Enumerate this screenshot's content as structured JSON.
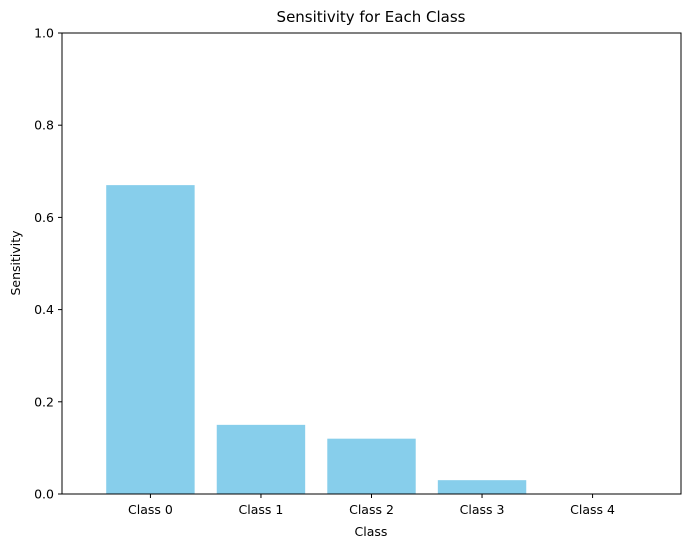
{
  "chart_data": {
    "type": "bar",
    "title": "Sensitivity for Each Class",
    "xlabel": "Class",
    "ylabel": "Sensitivity",
    "categories": [
      "Class 0",
      "Class 1",
      "Class 2",
      "Class 3",
      "Class 4"
    ],
    "values": [
      0.67,
      0.15,
      0.12,
      0.03,
      0.0
    ],
    "ylim": [
      0,
      1
    ],
    "yticks": [
      "0.0",
      "0.2",
      "0.4",
      "0.6",
      "0.8",
      "1.0"
    ],
    "bar_color": "#87ceeb",
    "grid": false,
    "legend": "none"
  }
}
